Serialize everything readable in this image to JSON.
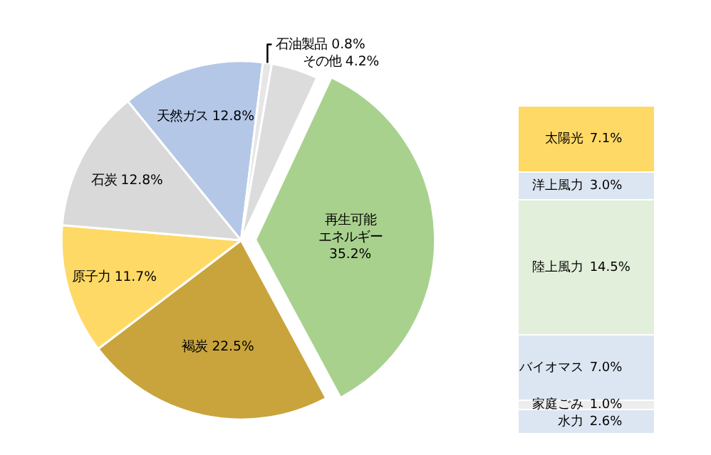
{
  "chart_data": [
    {
      "type": "pie",
      "categories": [
        "再生可能エネルギー",
        "褐炭",
        "原子力",
        "石炭",
        "天然ガス",
        "石油製品",
        "その他"
      ],
      "values": [
        35.2,
        22.5,
        11.7,
        12.8,
        12.8,
        0.8,
        4.2
      ],
      "value_labels": [
        "35.2%",
        "22.5%",
        "11.7%",
        "12.8%",
        "12.8%",
        "0.8%",
        "4.2%"
      ],
      "colors": [
        "#a9d18e",
        "#c9a43c",
        "#ffd966",
        "#d9d9d9",
        "#b4c7e7",
        "#e7e6e6",
        "#dcdcdc"
      ],
      "legend": false
    },
    {
      "type": "bar",
      "stacked": true,
      "categories": [
        null
      ],
      "legend": false,
      "series": [
        {
          "name": "水力",
          "color": "#dce6f2",
          "values": [
            2.6
          ],
          "value_labels": [
            "2.6%"
          ]
        },
        {
          "name": "家庭ごみ",
          "color": "#ededed",
          "values": [
            1.0
          ],
          "value_labels": [
            "1.0%"
          ]
        },
        {
          "name": "バイオマス",
          "color": "#dce6f2",
          "values": [
            7.0
          ],
          "value_labels": [
            "7.0%"
          ]
        },
        {
          "name": "陸上風力",
          "color": "#e2efda",
          "values": [
            14.5
          ],
          "value_labels": [
            "14.5%"
          ]
        },
        {
          "name": "洋上風力",
          "color": "#dce6f2",
          "values": [
            3.0
          ],
          "value_labels": [
            "3.0%"
          ]
        },
        {
          "name": "太陽光",
          "color": "#ffd966",
          "values": [
            7.1
          ],
          "value_labels": [
            "7.1%"
          ]
        }
      ]
    }
  ]
}
